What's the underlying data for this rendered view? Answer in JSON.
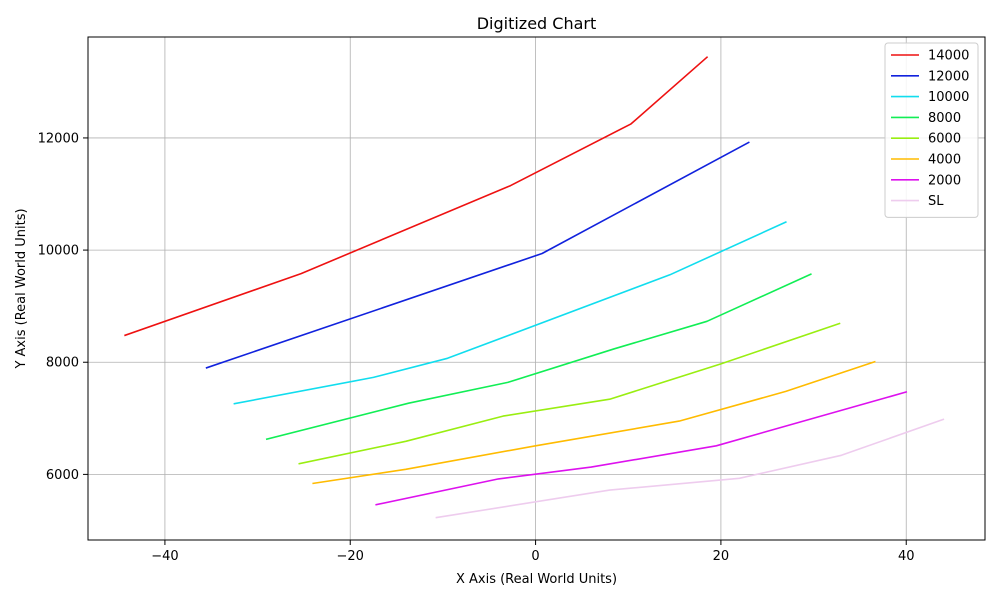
{
  "chart_data": {
    "type": "line",
    "title": "Digitized Chart",
    "xlabel": "X Axis (Real World Units)",
    "ylabel": "Y Axis (Real World Units)",
    "xlim": [
      -48.3,
      48.5
    ],
    "ylim": [
      4830,
      13800
    ],
    "xticks": [
      -40,
      -20,
      0,
      20,
      40
    ],
    "yticks": [
      6000,
      8000,
      10000,
      12000
    ],
    "xtick_labels": [
      "−40",
      "−20",
      "0",
      "20",
      "40"
    ],
    "ytick_labels": [
      "6000",
      "8000",
      "10000",
      "12000"
    ],
    "grid": true,
    "legend_position": "top-right",
    "series": [
      {
        "name": "14000",
        "color": "#ee1111",
        "x": [
          -44.3,
          -25.3,
          -2.7,
          10.3,
          18.5
        ],
        "y": [
          8480,
          9580,
          11150,
          12250,
          13440
        ]
      },
      {
        "name": "12000",
        "color": "#1122dd",
        "x": [
          -35.5,
          0.7,
          23.0
        ],
        "y": [
          7900,
          9940,
          11920
        ]
      },
      {
        "name": "10000",
        "color": "#11ddee",
        "x": [
          -32.5,
          -17.5,
          -9.5,
          14.5,
          27.0
        ],
        "y": [
          7260,
          7730,
          8070,
          9560,
          10500
        ]
      },
      {
        "name": "8000",
        "color": "#11ee55",
        "x": [
          -29.0,
          -13.7,
          -3.0,
          8.5,
          18.5,
          29.7
        ],
        "y": [
          6630,
          7270,
          7640,
          8240,
          8730,
          9570
        ]
      },
      {
        "name": "6000",
        "color": "#99ee11",
        "x": [
          -25.5,
          -14.0,
          -3.5,
          8.0,
          20.0,
          32.8
        ],
        "y": [
          6190,
          6590,
          7040,
          7340,
          7970,
          8690
        ]
      },
      {
        "name": "4000",
        "color": "#ffbb00",
        "x": [
          -24.0,
          -14.0,
          0.0,
          15.5,
          27.0,
          36.6
        ],
        "y": [
          5840,
          6090,
          6510,
          6950,
          7480,
          8010
        ]
      },
      {
        "name": "2000",
        "color": "#dd11ee",
        "x": [
          -17.2,
          -4.0,
          6.0,
          19.5,
          40.0
        ],
        "y": [
          5460,
          5920,
          6130,
          6510,
          7470
        ]
      },
      {
        "name": "SL",
        "color": "#eeccee",
        "x": [
          -10.7,
          8.0,
          22.0,
          33.0,
          44.0
        ],
        "y": [
          5230,
          5720,
          5930,
          6340,
          6980
        ]
      }
    ]
  }
}
